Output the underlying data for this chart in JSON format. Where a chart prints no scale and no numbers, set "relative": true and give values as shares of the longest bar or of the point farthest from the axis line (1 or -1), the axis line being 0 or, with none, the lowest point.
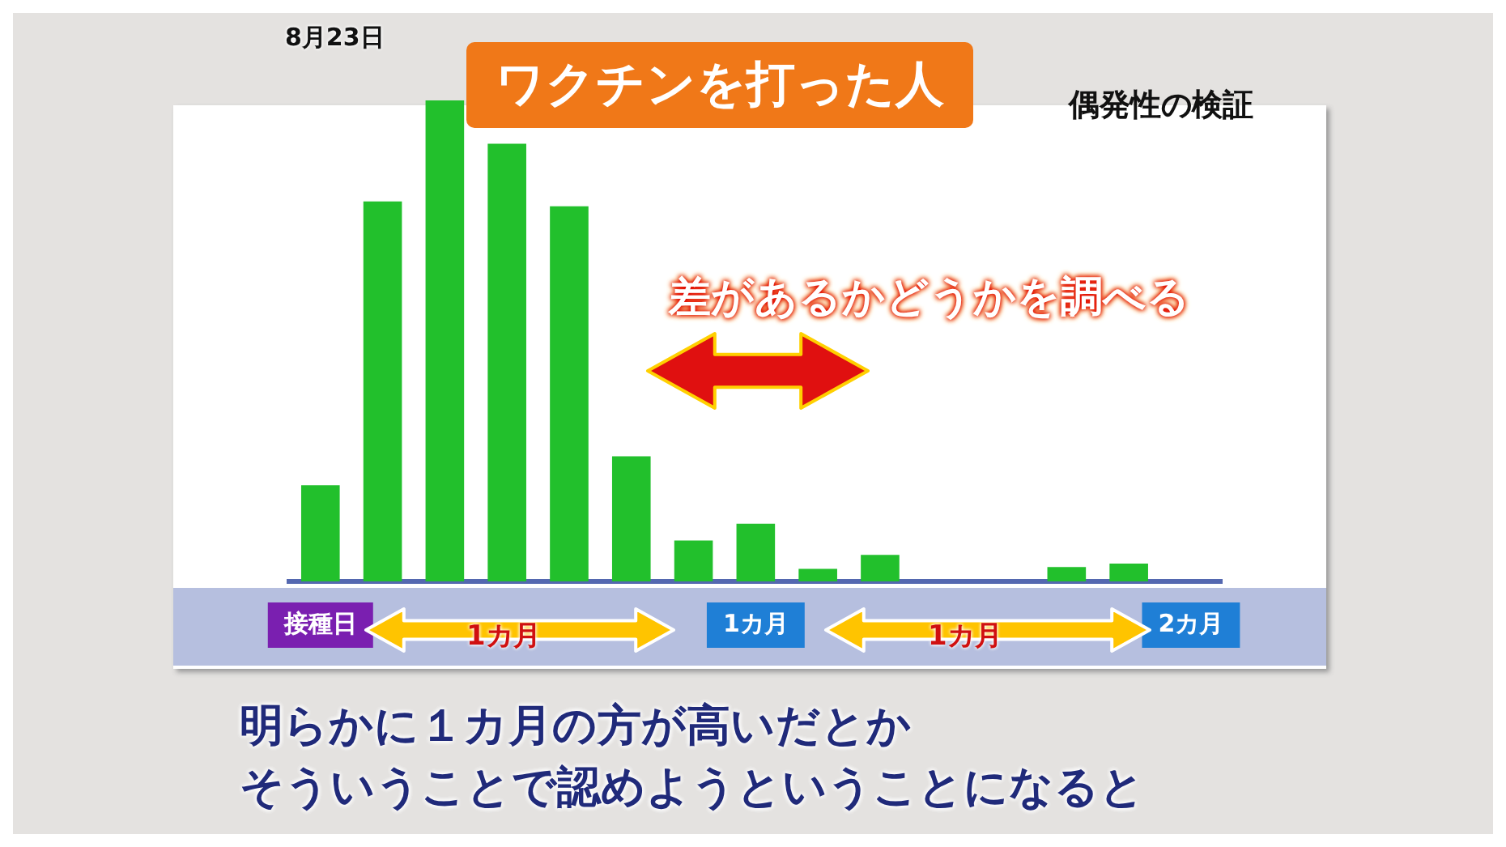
{
  "chart_data": {
    "type": "bar",
    "title": "ワクチンを打った人",
    "subtitle": "偶発性の検証",
    "categories": [
      "接種日",
      null,
      null,
      null,
      null,
      null,
      null,
      "1カ月",
      null,
      null,
      null,
      null,
      null,
      null,
      "2カ月"
    ],
    "values": [
      0.2,
      0.79,
      1,
      0.91,
      0.78,
      0.26,
      0.085,
      0.12,
      0.026,
      0.055,
      0,
      0,
      0.03,
      0.037,
      0
    ],
    "color": "#22c02c",
    "relative": true,
    "grid": false,
    "legend": false,
    "annotations": [
      "差があるかどうかを調べる",
      "1カ月",
      "1カ月",
      "明らかに１カ月の方が高いだとか",
      "そういうことで認めようということになると",
      "8月23日"
    ]
  }
}
